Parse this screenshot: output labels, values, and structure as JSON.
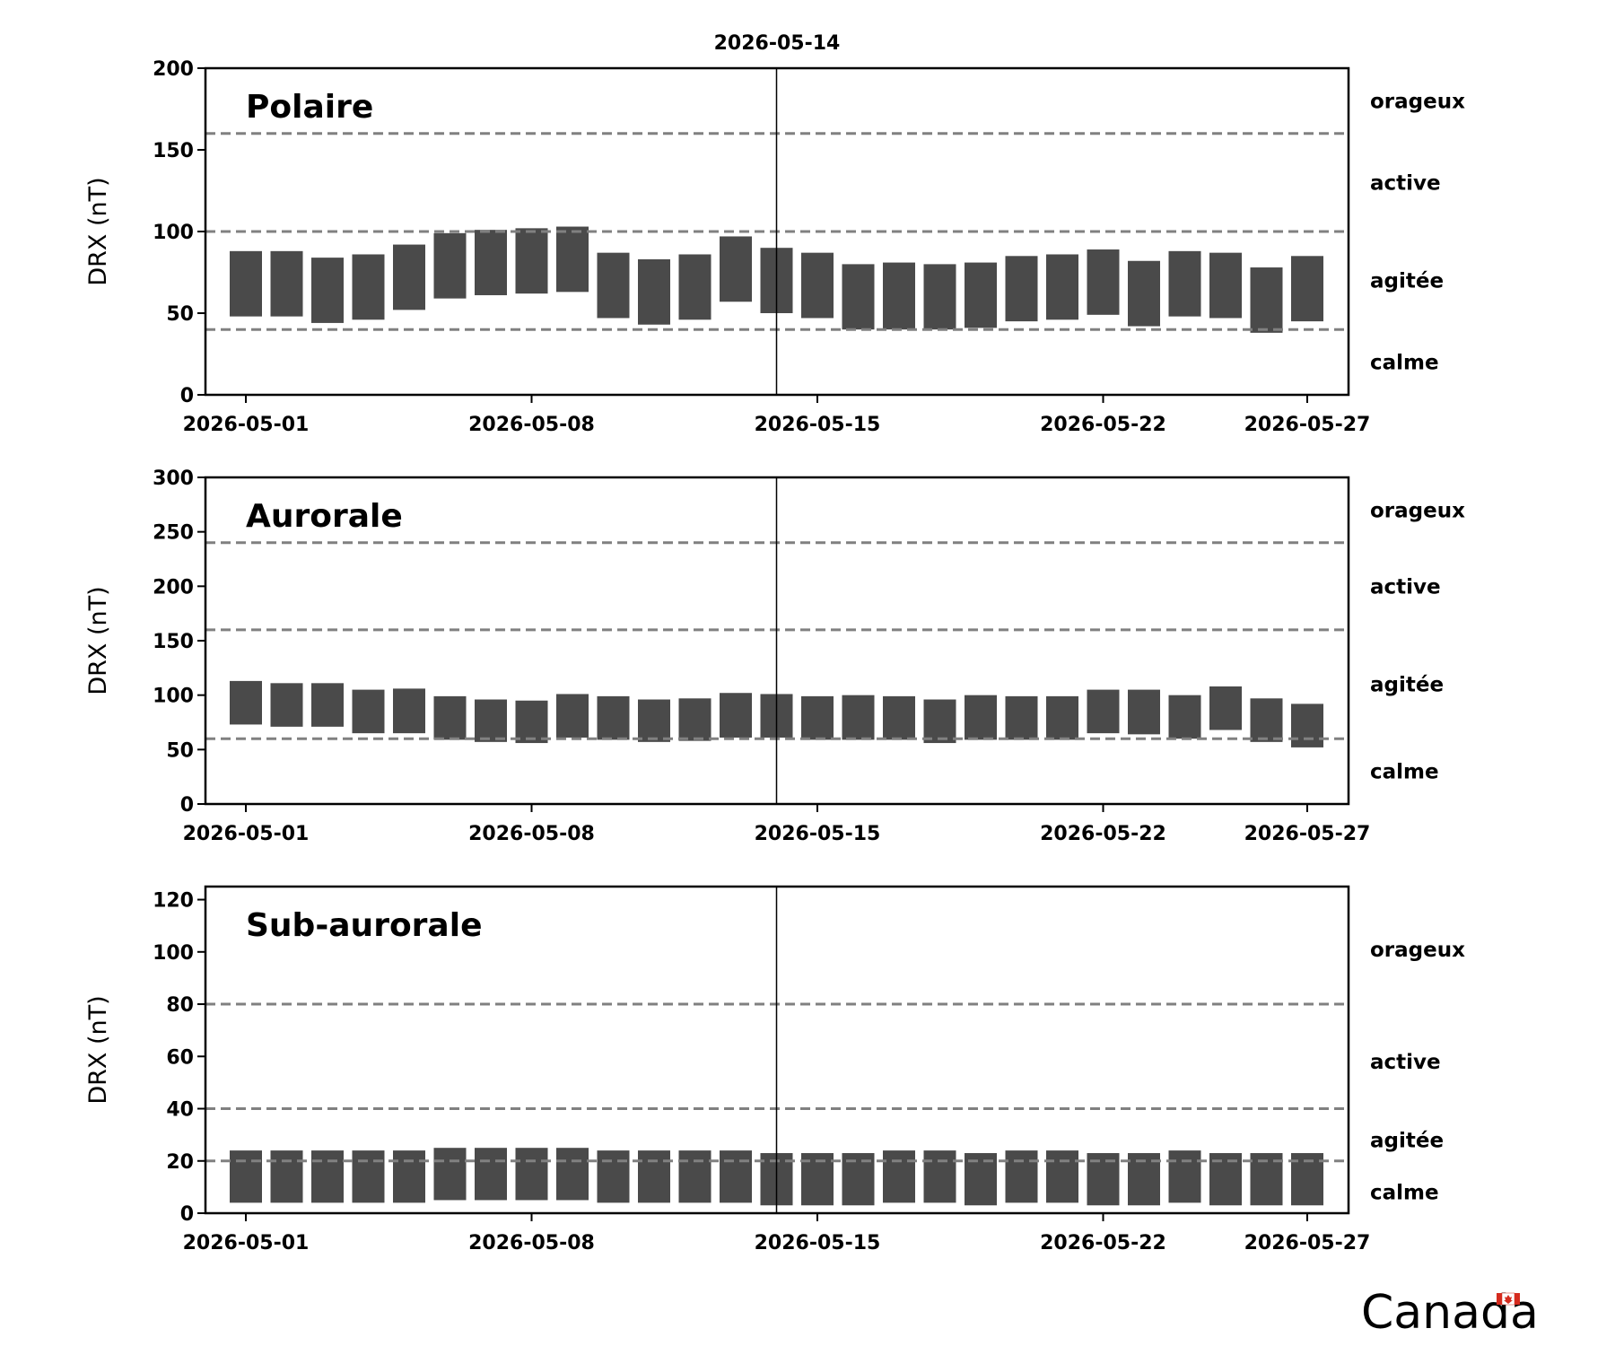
{
  "current_date": "2026-05-14",
  "colors": {
    "bar": "#4a4a4a",
    "threshold": "#808080",
    "axes": "#000000",
    "marker": "#000000",
    "canada_flag": "#d52b1e"
  },
  "canada_wordmark": "Canada",
  "chart_data": [
    {
      "type": "bar",
      "title": "Polaire",
      "ylabel": "DRX (nT)",
      "ylim": [
        0,
        200
      ],
      "yticks": [
        0,
        50,
        100,
        150,
        200
      ],
      "x_tick_labels": [
        "2026-05-01",
        "2026-05-08",
        "2026-05-15",
        "2026-05-22",
        "2026-05-27"
      ],
      "thresholds": [
        40,
        100,
        160
      ],
      "levels": [
        {
          "label": "orageux",
          "y": 180
        },
        {
          "label": "active",
          "y": 130
        },
        {
          "label": "agitée",
          "y": 70
        },
        {
          "label": "calme",
          "y": 20
        }
      ],
      "marker_date": "2026-05-14",
      "dates": [
        "2026-05-01",
        "2026-05-02",
        "2026-05-03",
        "2026-05-04",
        "2026-05-05",
        "2026-05-06",
        "2026-05-07",
        "2026-05-08",
        "2026-05-09",
        "2026-05-10",
        "2026-05-11",
        "2026-05-12",
        "2026-05-13",
        "2026-05-14",
        "2026-05-15",
        "2026-05-16",
        "2026-05-17",
        "2026-05-18",
        "2026-05-19",
        "2026-05-20",
        "2026-05-21",
        "2026-05-22",
        "2026-05-23",
        "2026-05-24",
        "2026-05-25",
        "2026-05-26",
        "2026-05-27"
      ],
      "low": [
        48,
        48,
        44,
        46,
        52,
        59,
        61,
        62,
        63,
        47,
        43,
        46,
        57,
        50,
        47,
        40,
        40,
        40,
        41,
        45,
        46,
        49,
        42,
        48,
        47,
        38,
        45
      ],
      "high": [
        88,
        88,
        84,
        86,
        92,
        99,
        101,
        102,
        103,
        87,
        83,
        86,
        97,
        90,
        87,
        80,
        81,
        80,
        81,
        85,
        86,
        89,
        82,
        88,
        87,
        78,
        85
      ]
    },
    {
      "type": "bar",
      "title": "Aurorale",
      "ylabel": "DRX (nT)",
      "ylim": [
        0,
        300
      ],
      "yticks": [
        0,
        50,
        100,
        150,
        200,
        250,
        300
      ],
      "x_tick_labels": [
        "2026-05-01",
        "2026-05-08",
        "2026-05-15",
        "2026-05-22",
        "2026-05-27"
      ],
      "thresholds": [
        60,
        160,
        240
      ],
      "levels": [
        {
          "label": "orageux",
          "y": 270
        },
        {
          "label": "active",
          "y": 200
        },
        {
          "label": "agitée",
          "y": 110
        },
        {
          "label": "calme",
          "y": 30
        }
      ],
      "marker_date": "2026-05-14",
      "dates": [
        "2026-05-01",
        "2026-05-02",
        "2026-05-03",
        "2026-05-04",
        "2026-05-05",
        "2026-05-06",
        "2026-05-07",
        "2026-05-08",
        "2026-05-09",
        "2026-05-10",
        "2026-05-11",
        "2026-05-12",
        "2026-05-13",
        "2026-05-14",
        "2026-05-15",
        "2026-05-16",
        "2026-05-17",
        "2026-05-18",
        "2026-05-19",
        "2026-05-20",
        "2026-05-21",
        "2026-05-22",
        "2026-05-23",
        "2026-05-24",
        "2026-05-25",
        "2026-05-26",
        "2026-05-27"
      ],
      "low": [
        73,
        71,
        71,
        65,
        65,
        59,
        57,
        56,
        61,
        59,
        57,
        58,
        61,
        61,
        59,
        59,
        59,
        56,
        59,
        59,
        59,
        65,
        64,
        60,
        68,
        57,
        52
      ],
      "high": [
        113,
        111,
        111,
        105,
        106,
        99,
        96,
        95,
        101,
        99,
        96,
        97,
        102,
        101,
        99,
        100,
        99,
        96,
        100,
        99,
        99,
        105,
        105,
        100,
        108,
        97,
        92
      ]
    },
    {
      "type": "bar",
      "title": "Sub-aurorale",
      "ylabel": "DRX (nT)",
      "ylim": [
        0,
        125
      ],
      "yticks": [
        0,
        20,
        40,
        60,
        80,
        100,
        120
      ],
      "x_tick_labels": [
        "2026-05-01",
        "2026-05-08",
        "2026-05-15",
        "2026-05-22",
        "2026-05-27"
      ],
      "thresholds": [
        20,
        40,
        80
      ],
      "levels": [
        {
          "label": "orageux",
          "y": 101
        },
        {
          "label": "active",
          "y": 58
        },
        {
          "label": "agitée",
          "y": 28
        },
        {
          "label": "calme",
          "y": 8
        }
      ],
      "marker_date": "2026-05-14",
      "dates": [
        "2026-05-01",
        "2026-05-02",
        "2026-05-03",
        "2026-05-04",
        "2026-05-05",
        "2026-05-06",
        "2026-05-07",
        "2026-05-08",
        "2026-05-09",
        "2026-05-10",
        "2026-05-11",
        "2026-05-12",
        "2026-05-13",
        "2026-05-14",
        "2026-05-15",
        "2026-05-16",
        "2026-05-17",
        "2026-05-18",
        "2026-05-19",
        "2026-05-20",
        "2026-05-21",
        "2026-05-22",
        "2026-05-23",
        "2026-05-24",
        "2026-05-25",
        "2026-05-26",
        "2026-05-27"
      ],
      "low": [
        4,
        4,
        4,
        4,
        4,
        5,
        5,
        5,
        5,
        4,
        4,
        4,
        4,
        3,
        3,
        3,
        4,
        4,
        3,
        4,
        4,
        3,
        3,
        4,
        3,
        3,
        3
      ],
      "high": [
        24,
        24,
        24,
        24,
        24,
        25,
        25,
        25,
        25,
        24,
        24,
        24,
        24,
        23,
        23,
        23,
        24,
        24,
        23,
        24,
        24,
        23,
        23,
        24,
        23,
        23,
        23
      ]
    }
  ]
}
